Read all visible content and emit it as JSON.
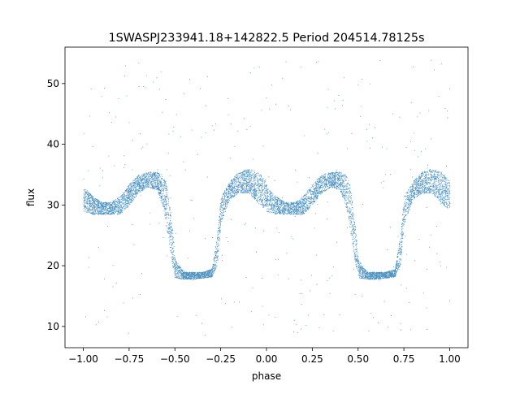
{
  "chart_data": {
    "type": "scatter",
    "title": "1SWASPJ233941.18+142822.5 Period 204514.78125s",
    "xlabel": "phase",
    "ylabel": "flux",
    "xlim": [
      -1.1,
      1.1
    ],
    "ylim": [
      6.5,
      56.0
    ],
    "xticks": [
      -1.0,
      -0.75,
      -0.5,
      -0.25,
      0.0,
      0.25,
      0.5,
      0.75,
      1.0
    ],
    "xtick_labels": [
      "−1.00",
      "−0.75",
      "−0.50",
      "−0.25",
      "0.00",
      "0.25",
      "0.50",
      "0.75",
      "1.00"
    ],
    "yticks": [
      10,
      20,
      30,
      40,
      50
    ],
    "ytick_labels": [
      "10",
      "20",
      "30",
      "40",
      "50"
    ],
    "grid": false,
    "legend": "none",
    "marker_color": "#1f77b4",
    "series": [
      {
        "phase_range": [
          -1.0,
          1.0
        ],
        "repeat_period": 1.0,
        "envelope": {
          "phase": [
            0.0,
            0.05,
            0.1,
            0.15,
            0.2,
            0.25,
            0.3,
            0.35,
            0.4,
            0.43,
            0.45,
            0.48,
            0.5,
            0.55,
            0.6,
            0.65,
            0.7,
            0.73,
            0.75,
            0.8,
            0.85,
            0.9,
            0.95,
            1.0
          ],
          "flux_upper": [
            33.0,
            31.5,
            30.5,
            30.5,
            31.5,
            33.5,
            35.0,
            35.5,
            35.5,
            35.0,
            34.0,
            28.0,
            21.0,
            19.0,
            19.0,
            19.0,
            19.5,
            25.0,
            31.5,
            34.0,
            35.5,
            36.0,
            35.5,
            34.0
          ],
          "flux_lower": [
            29.0,
            28.5,
            28.5,
            28.5,
            28.5,
            30.0,
            32.0,
            33.0,
            32.5,
            30.0,
            27.0,
            21.0,
            18.0,
            17.8,
            17.8,
            18.0,
            18.2,
            20.0,
            27.0,
            31.0,
            32.0,
            32.0,
            30.5,
            29.0
          ]
        },
        "outliers_flux_range": [
          8.5,
          54.0
        ],
        "approx_point_count": 9000
      }
    ]
  }
}
